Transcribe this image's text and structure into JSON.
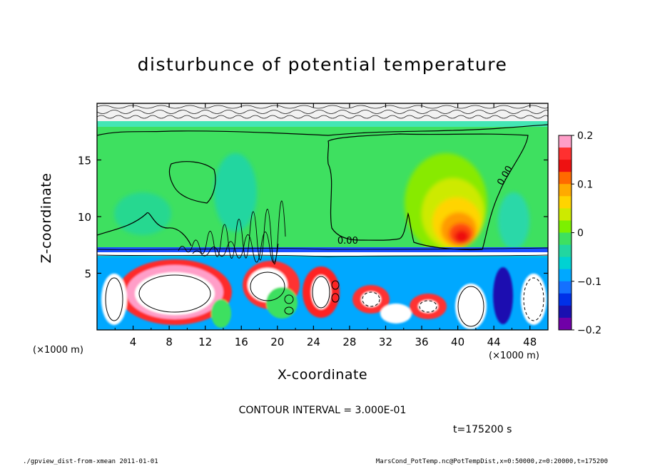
{
  "chart_data": {
    "type": "heatmap",
    "title": "disturbunce of potential temperature",
    "xlabel": "X-coordinate",
    "ylabel": "Z-coordinate",
    "x_unit": "(×1000 m)",
    "z_unit": "(×1000 m)",
    "x_ticks": [
      4,
      8,
      12,
      16,
      20,
      24,
      28,
      32,
      36,
      40,
      44,
      48
    ],
    "z_ticks": [
      5,
      10,
      15
    ],
    "xlim": [
      0,
      50
    ],
    "ylim": [
      0,
      20
    ],
    "contour_interval_text": "CONTOUR INTERVAL = 3.000E-01",
    "time_text": "t=175200 s",
    "contour_labels": [
      {
        "text": "0.00",
        "x": 27.8,
        "z": 7.6
      },
      {
        "text": "0.00",
        "x": 45.5,
        "z": 13.5
      }
    ],
    "colorbar": {
      "min": -0.2,
      "max": 0.2,
      "tick_labels": [
        "0.2",
        "0.1",
        "0",
        "−0.1",
        "−0.2"
      ],
      "tick_values": [
        0.2,
        0.1,
        0,
        -0.1,
        -0.2
      ],
      "colors": [
        "#ff9ec8",
        "#ff3030",
        "#ee1111",
        "#ff6a00",
        "#ffaa00",
        "#ffd400",
        "#cdea00",
        "#7cf000",
        "#3ee060",
        "#22d6a0",
        "#00d2d2",
        "#00a8ff",
        "#1470ff",
        "#0030e8",
        "#1a10b0",
        "#7000a8"
      ]
    },
    "features": [
      {
        "name": "warm anomaly",
        "x": 40.5,
        "z": 8.3,
        "value": 0.2
      },
      {
        "name": "near-zero upper region",
        "x_range": [
          0,
          50
        ],
        "z_range": [
          7,
          18.5
        ],
        "value": 0
      }
    ]
  },
  "footer": {
    "left": "./gpview_dist-from-xmean  2011-01-01",
    "right": "MarsCond_PotTemp.nc@PotTempDist,x=0:50000,z=0:20000,t=175200"
  }
}
